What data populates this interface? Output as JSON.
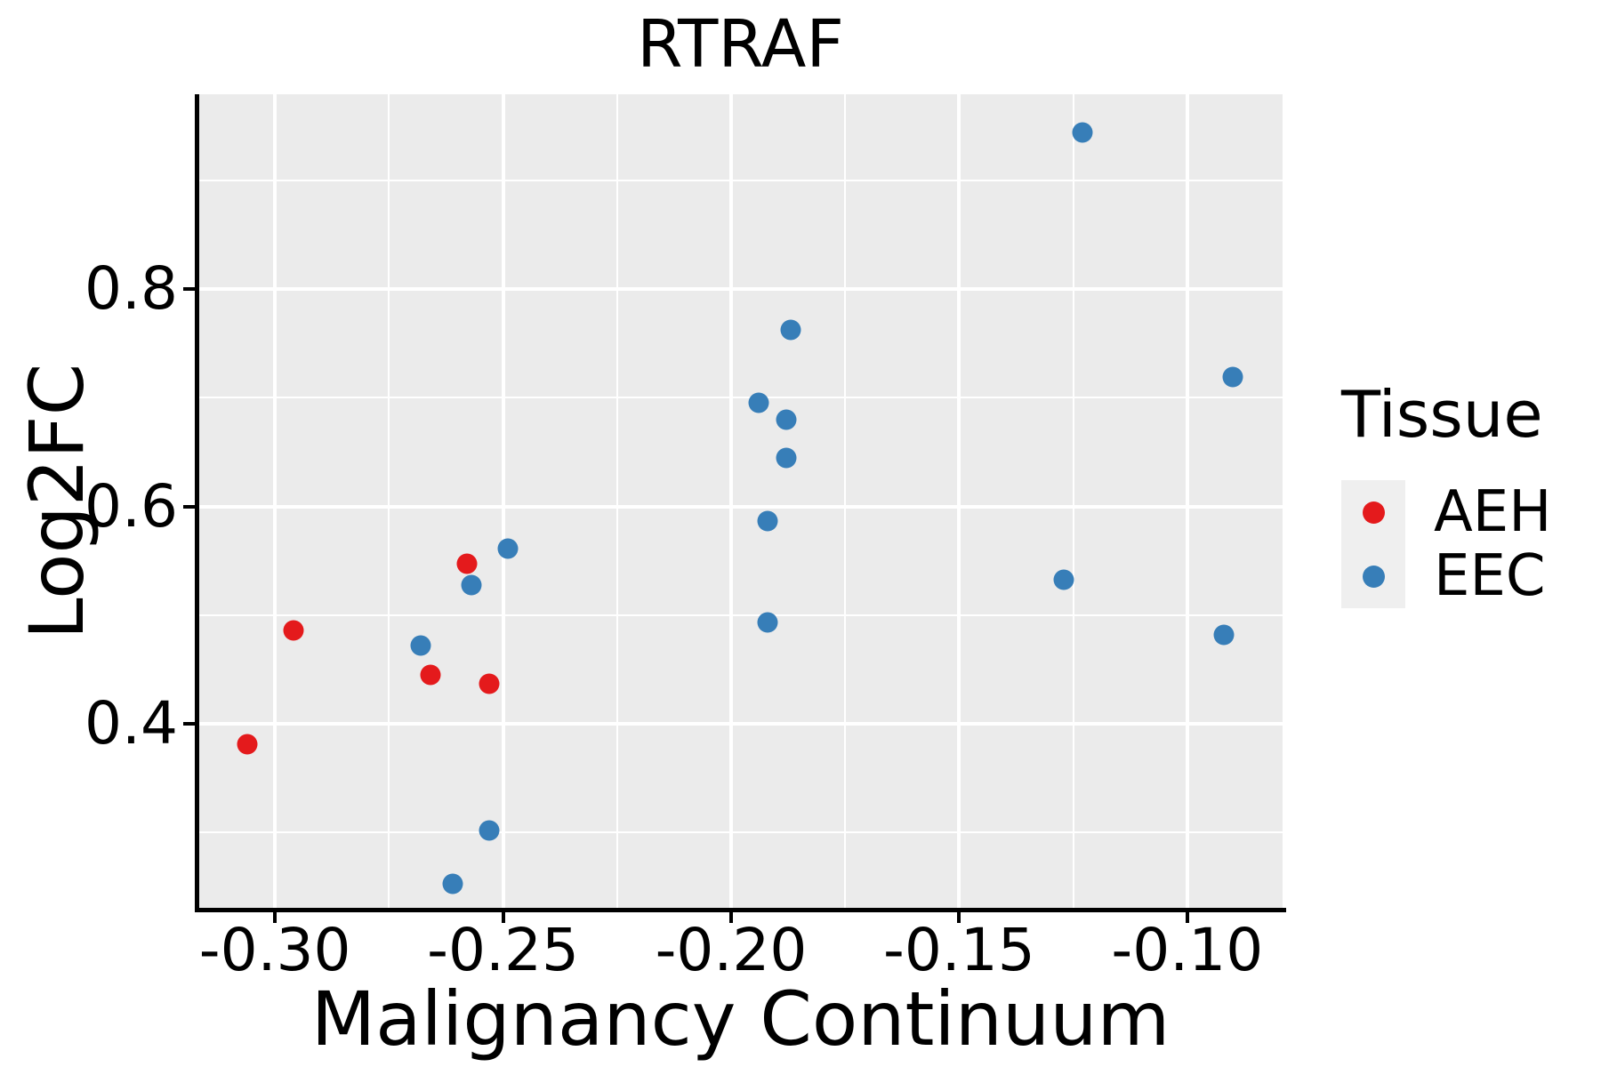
{
  "title": "RTRAF",
  "colors": {
    "aeh_red": "#e41a1c",
    "eec_blue": "#377eb8",
    "panel_background": "#ebebeb",
    "gridline": "#ffffff",
    "axis_text": "#000000",
    "legend_key_background": "#efefef"
  },
  "chart_data": {
    "type": "scatter",
    "title": "RTRAF",
    "xlabel": "Malignancy Continuum",
    "ylabel": "Log2FC",
    "xlim": [
      -0.3168,
      -0.0791
    ],
    "ylim": [
      0.2309,
      0.9791
    ],
    "grid": "white major and minor gridlines on gray panel",
    "x_ticks": {
      "values": [
        -0.3,
        -0.25,
        -0.2,
        -0.15,
        -0.1
      ],
      "labels": [
        "-0.30",
        "-0.25",
        "-0.20",
        "-0.15",
        "-0.10"
      ],
      "minor_values": [
        -0.275,
        -0.225,
        -0.175,
        -0.125
      ]
    },
    "y_ticks": {
      "values": [
        0.4,
        0.6,
        0.8
      ],
      "labels": [
        "0.4",
        "0.6",
        "0.8"
      ],
      "minor_values": [
        0.3,
        0.5,
        0.7,
        0.9
      ]
    },
    "legend": {
      "title": "Tissue",
      "position": "right",
      "entries": [
        {
          "label": "AEH",
          "color": "#e41a1c"
        },
        {
          "label": "EEC",
          "color": "#377eb8"
        }
      ]
    },
    "series": [
      {
        "name": "AEH",
        "color": "#e41a1c",
        "points": [
          [
            -0.306,
            0.381
          ],
          [
            -0.296,
            0.486
          ],
          [
            -0.266,
            0.445
          ],
          [
            -0.258,
            0.547
          ],
          [
            -0.253,
            0.437
          ]
        ]
      },
      {
        "name": "EEC",
        "color": "#377eb8",
        "points": [
          [
            -0.268,
            0.472
          ],
          [
            -0.261,
            0.253
          ],
          [
            -0.257,
            0.528
          ],
          [
            -0.253,
            0.302
          ],
          [
            -0.249,
            0.561
          ],
          [
            -0.194,
            0.695
          ],
          [
            -0.192,
            0.587
          ],
          [
            -0.192,
            0.493
          ],
          [
            -0.188,
            0.68
          ],
          [
            -0.188,
            0.645
          ],
          [
            -0.187,
            0.762
          ],
          [
            -0.127,
            0.533
          ],
          [
            -0.123,
            0.944
          ],
          [
            -0.09,
            0.719
          ],
          [
            -0.092,
            0.482
          ]
        ]
      }
    ]
  }
}
